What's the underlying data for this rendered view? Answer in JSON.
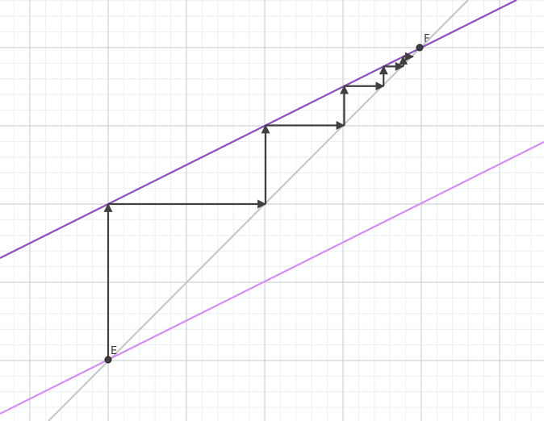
{
  "diagram": {
    "colors": {
      "background": "#ffffff",
      "grid_minor": "#eeeeee",
      "grid_major": "#c8c8c8",
      "diagonal": "#c4c4c4",
      "upper_line": "#8a4fc4",
      "lower_line": "#d58ef5",
      "arrow": "#404040",
      "point_fill": "#404040",
      "point_stroke": "#1f1f1f"
    },
    "points": {
      "E": {
        "label": "E"
      },
      "F": {
        "label": "F"
      }
    },
    "lines": [
      {
        "name": "diagonal-line",
        "color_key": "diagonal"
      },
      {
        "name": "upper-line",
        "color_key": "upper_line"
      },
      {
        "name": "lower-line",
        "color_key": "lower_line"
      }
    ],
    "staircase_steps": 5
  }
}
